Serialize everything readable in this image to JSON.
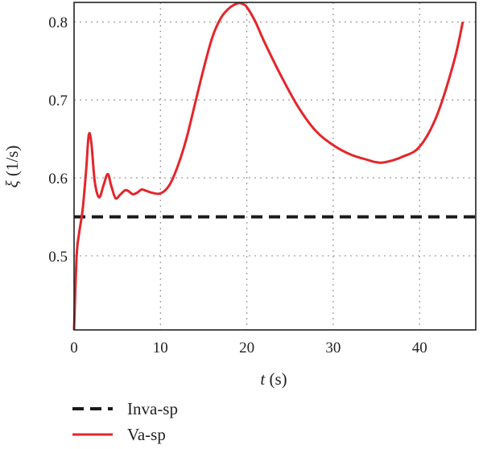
{
  "chart_data": {
    "type": "line",
    "xlabel_var": "t",
    "xlabel_unit": " (s)",
    "ylabel_var": "ξ",
    "ylabel_unit": " (1/s)",
    "xlim": [
      0,
      46.5
    ],
    "ylim": [
      0.405,
      0.825
    ],
    "xticks": [
      0,
      10,
      20,
      30,
      40
    ],
    "yticks": [
      0.5,
      0.6,
      0.7,
      0.8
    ],
    "ytick_labels": [
      "0.5",
      "0.6",
      "0.7",
      "0.8"
    ],
    "grid": true,
    "legend_position": "bottom-left",
    "series": [
      {
        "name": "Inva-sp",
        "style": "dashed",
        "color": "#1a1a1a",
        "x": [
          0,
          46.5
        ],
        "y": [
          0.55,
          0.55
        ]
      },
      {
        "name": "Va-sp",
        "style": "solid",
        "color": "#e3262b",
        "x": [
          0,
          0.3,
          0.6,
          1.0,
          1.4,
          1.7,
          2.0,
          2.4,
          2.9,
          3.4,
          3.9,
          4.3,
          4.8,
          5.3,
          5.9,
          6.3,
          6.8,
          7.3,
          7.8,
          8.2,
          9.0,
          10.0,
          11.0,
          12.0,
          13.0,
          14.0,
          15.0,
          16.0,
          17.0,
          18.0,
          19.0,
          19.5,
          20.0,
          21.0,
          22.0,
          24.0,
          26.0,
          28.0,
          30.0,
          32.0,
          34.0,
          35.0,
          36.0,
          38.0,
          40.0,
          42.0,
          44.0,
          45.0
        ],
        "y": [
          0.405,
          0.5,
          0.53,
          0.56,
          0.61,
          0.655,
          0.645,
          0.595,
          0.575,
          0.59,
          0.605,
          0.59,
          0.574,
          0.578,
          0.584,
          0.583,
          0.579,
          0.581,
          0.585,
          0.584,
          0.581,
          0.58,
          0.59,
          0.615,
          0.65,
          0.695,
          0.74,
          0.78,
          0.805,
          0.818,
          0.824,
          0.823,
          0.819,
          0.8,
          0.775,
          0.73,
          0.69,
          0.66,
          0.642,
          0.63,
          0.623,
          0.62,
          0.62,
          0.627,
          0.64,
          0.68,
          0.75,
          0.8
        ]
      }
    ]
  }
}
